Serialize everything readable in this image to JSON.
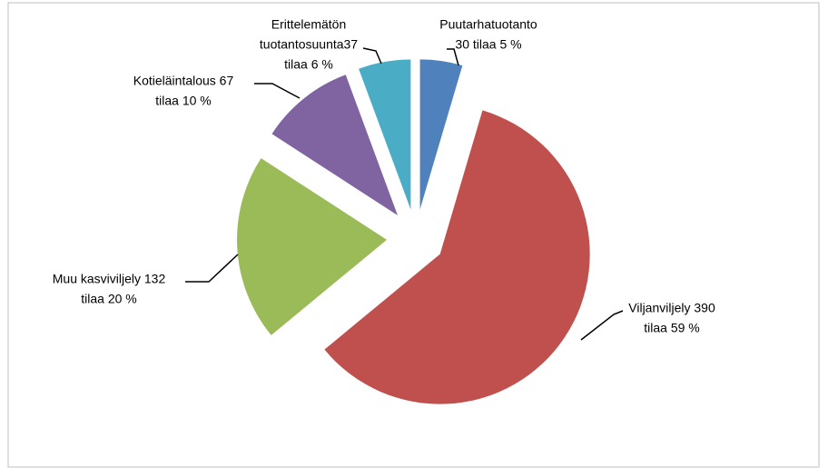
{
  "chart_data": {
    "type": "pie",
    "values": [
      30,
      390,
      132,
      67,
      37
    ],
    "labels": [
      [
        "Puutarhatuotanto",
        "30 tilaa 5 %"
      ],
      [
        "Viljanviljely 390",
        "tilaa 59 %"
      ],
      [
        "Muu kasviviljely 132",
        "tilaa 20 %"
      ],
      [
        "Kotieläintalous 67",
        "tilaa 10 %"
      ],
      [
        "Erittelemätön",
        "tuotantosuunta37",
        "tilaa 6 %"
      ]
    ],
    "colors": [
      "#4f81bd",
      "#c0504d",
      "#9bbb59",
      "#8064a2",
      "#4bacc6"
    ],
    "exploded": true
  }
}
